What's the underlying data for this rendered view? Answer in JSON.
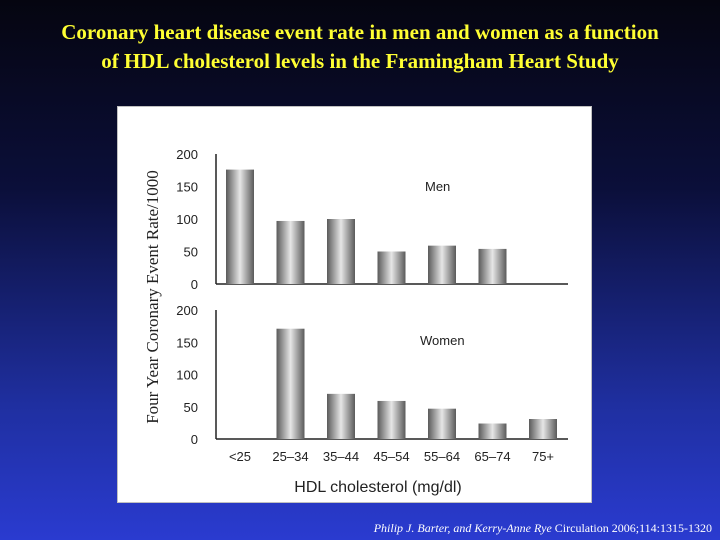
{
  "slide": {
    "title_line1": "Coronary heart disease event rate in men and women as a function",
    "title_line2": "of HDL cholesterol levels in the Framingham Heart Study",
    "citation_authors": "Philip J. Barter, and Kerry-Anne Rye",
    "citation_journal": " Circulation 2006;114:1315-1320"
  },
  "chart_data": {
    "type": "bar",
    "ylabel": "Four Year Coronary Event Rate/1000",
    "xlabel": "HDL cholesterol (mg/dl)",
    "categories": [
      "<25",
      "25–34",
      "35–44",
      "45–54",
      "55–64",
      "65–74",
      "75+"
    ],
    "ylim": [
      0,
      200
    ],
    "yticks": [
      0,
      50,
      100,
      150,
      200
    ],
    "grid": false,
    "colors": {
      "bar_dark": "#5a5a5a",
      "bar_light": "#e6e6e6"
    },
    "panels": [
      {
        "name": "Men",
        "values": [
          176,
          97,
          100,
          50,
          59,
          54,
          null
        ]
      },
      {
        "name": "Women",
        "values": [
          null,
          171,
          70,
          59,
          47,
          24,
          31
        ]
      }
    ]
  }
}
